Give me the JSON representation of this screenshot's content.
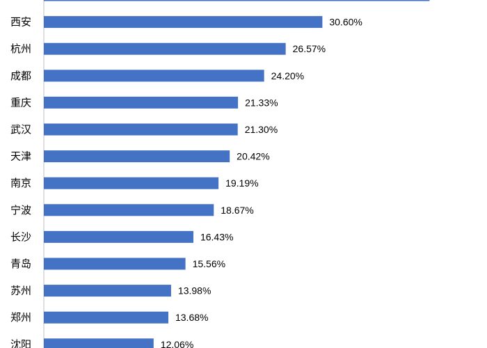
{
  "chart_data": {
    "type": "bar",
    "orientation": "horizontal",
    "categories": [
      "",
      "西安",
      "杭州",
      "成都",
      "重庆",
      "武汉",
      "天津",
      "南京",
      "宁波",
      "长沙",
      "青岛",
      "苏州",
      "郑州",
      "沈阳"
    ],
    "values": [
      42.37,
      30.6,
      26.57,
      24.2,
      21.33,
      21.3,
      20.42,
      19.19,
      18.67,
      16.43,
      15.56,
      13.98,
      13.68,
      12.06
    ],
    "value_labels": [
      "",
      "30.60%",
      "26.57%",
      "24.20%",
      "21.33%",
      "21.30%",
      "20.42%",
      "19.19%",
      "18.67%",
      "16.43%",
      "15.56%",
      "13.98%",
      "13.68%",
      "12.06%"
    ],
    "bar_color": "#4472C4",
    "axis_color": "#BFBFBF",
    "title": "",
    "xlabel": "",
    "ylabel": "",
    "xlim": [
      0,
      42.8
    ],
    "grid": false,
    "legend": "none"
  }
}
